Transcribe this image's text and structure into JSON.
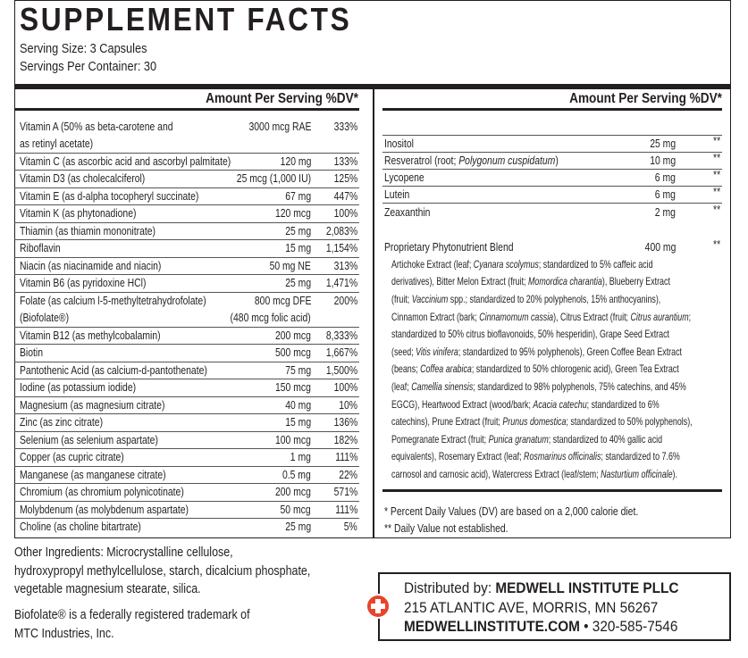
{
  "header": {
    "title": "SUPPLEMENT FACTS",
    "serving_size": "Serving Size: 3 Capsules",
    "servings_per_container": "Servings Per Container: 30"
  },
  "left_table": {
    "heading": "Amount Per Serving %DV*",
    "rows": [
      {
        "name": [
          "Vitamin A (50% as beta-carotene and",
          "as retinyl acetate)"
        ],
        "amount": [
          "3000 mcg RAE"
        ],
        "dv": "333%"
      },
      {
        "name": [
          "Vitamin C (as ascorbic acid and ascorbyl palmitate)"
        ],
        "amount": [
          "120 mg"
        ],
        "dv": "133%"
      },
      {
        "name": [
          "Vitamin D3 (as cholecalciferol)"
        ],
        "amount": [
          "25 mcg (1,000 IU)"
        ],
        "dv": "125%"
      },
      {
        "name": [
          "Vitamin E (as d-alpha tocopheryl succinate)"
        ],
        "amount": [
          "67 mg"
        ],
        "dv": "447%"
      },
      {
        "name": [
          "Vitamin K (as phytonadione)"
        ],
        "amount": [
          "120 mcg"
        ],
        "dv": "100%"
      },
      {
        "name": [
          "Thiamin (as thiamin mononitrate)"
        ],
        "amount": [
          "25 mg"
        ],
        "dv": "2,083%"
      },
      {
        "name": [
          "Riboflavin"
        ],
        "amount": [
          "15 mg"
        ],
        "dv": "1,154%"
      },
      {
        "name": [
          "Niacin (as niacinamide and niacin)"
        ],
        "amount": [
          "50 mg NE"
        ],
        "dv": "313%"
      },
      {
        "name": [
          "Vitamin B6 (as pyridoxine HCl)"
        ],
        "amount": [
          "25 mg"
        ],
        "dv": "1,471%"
      },
      {
        "name": [
          "Folate (as calcium l-5-methyltetrahydrofolate)",
          "(Biofolate®)"
        ],
        "amount": [
          "800 mcg DFE",
          "(480 mcg folic acid)"
        ],
        "dv": "200%"
      },
      {
        "name": [
          "Vitamin B12 (as methylcobalamin)"
        ],
        "amount": [
          "200 mcg"
        ],
        "dv": "8,333%"
      },
      {
        "name": [
          "Biotin"
        ],
        "amount": [
          "500 mcg"
        ],
        "dv": "1,667%"
      },
      {
        "name": [
          "Pantothenic Acid (as calcium-d-pantothenate)"
        ],
        "amount": [
          "75 mg"
        ],
        "dv": "1,500%"
      },
      {
        "name": [
          "Iodine (as potassium iodide)"
        ],
        "amount": [
          "150 mcg"
        ],
        "dv": "100%"
      },
      {
        "name": [
          "Magnesium (as magnesium citrate)"
        ],
        "amount": [
          "40 mg"
        ],
        "dv": "10%"
      },
      {
        "name": [
          "Zinc (as zinc citrate)"
        ],
        "amount": [
          "15 mg"
        ],
        "dv": "136%"
      },
      {
        "name": [
          "Selenium (as selenium aspartate)"
        ],
        "amount": [
          "100 mcg"
        ],
        "dv": "182%"
      },
      {
        "name": [
          "Copper (as cupric citrate)"
        ],
        "amount": [
          "1 mg"
        ],
        "dv": "111%"
      },
      {
        "name": [
          "Manganese (as manganese citrate)"
        ],
        "amount": [
          "0.5 mg"
        ],
        "dv": "22%"
      },
      {
        "name": [
          "Chromium (as chromium polynicotinate)"
        ],
        "amount": [
          "200 mcg"
        ],
        "dv": "571%"
      },
      {
        "name": [
          "Molybdenum (as molybdenum aspartate)"
        ],
        "amount": [
          "50 mcg"
        ],
        "dv": "111%"
      },
      {
        "name": [
          "Choline (as choline bitartrate)"
        ],
        "amount": [
          "25 mg"
        ],
        "dv": "5%"
      }
    ]
  },
  "right_table": {
    "heading": "Amount Per Serving %DV*",
    "rows": [
      {
        "name": "Inositol",
        "amount": "25 mg",
        "dv": "**"
      },
      {
        "name": [
          "Resveratrol (root; ",
          {
            "text": "Polygonum cuspidatum",
            "italic": true
          },
          ")"
        ],
        "amount": "10 mg",
        "dv": "**"
      },
      {
        "name": "Lycopene",
        "amount": "6 mg",
        "dv": "**"
      },
      {
        "name": "Lutein",
        "amount": "6 mg",
        "dv": "**"
      },
      {
        "name": "Zeaxanthin",
        "amount": "2 mg",
        "dv": "**"
      }
    ],
    "blend": {
      "name": "Proprietary Phytonutrient Blend",
      "amount": "400 mg",
      "dv": "**",
      "description": [
        [
          "Artichoke Extract (leaf; ",
          {
            "text": "Cyanara scolymus",
            "italic": true
          },
          "; standardized to 5% caffeic acid"
        ],
        [
          "derivatives), Bitter Melon Extract (fruit; ",
          {
            "text": "Momordica charantia",
            "italic": true
          },
          "), Blueberry Extract"
        ],
        [
          "(fruit; ",
          {
            "text": "Vaccinium",
            "italic": true
          },
          " spp.; standardized to 20% polyphenols, 15% anthocyanins),"
        ],
        [
          "Cinnamon Extract (bark; ",
          {
            "text": "Cinnamomum cassia",
            "italic": true
          },
          "), Citrus Extract (fruit; ",
          {
            "text": "Citrus aurantium",
            "italic": true
          },
          ";"
        ],
        [
          "standardized to 50% citrus bioflavonoids, 50% hesperidin), Grape Seed Extract"
        ],
        [
          "(seed; ",
          {
            "text": "Vitis vinifera",
            "italic": true
          },
          "; standardized to 95% polyphenols), Green Coffee Bean Extract"
        ],
        [
          "(beans; ",
          {
            "text": "Coffea arabica",
            "italic": true
          },
          "; standardized to 50% chlorogenic acid), Green Tea Extract"
        ],
        [
          "(leaf; ",
          {
            "text": "Camellia sinensis",
            "italic": true
          },
          "; standardized to 98% polyphenols, 75% catechins, and 45%"
        ],
        [
          "EGCG), Heartwood Extract (wood/bark; ",
          {
            "text": "Acacia catechu",
            "italic": true
          },
          "; standardized to 6%"
        ],
        [
          "catechins), Prune Extract (fruit; ",
          {
            "text": "Prunus domestica",
            "italic": true
          },
          "; standardized to 50% polyphenols),"
        ],
        [
          "Pomegranate Extract (fruit; ",
          {
            "text": "Punica granatum",
            "italic": true
          },
          "; standardized to 40% gallic acid"
        ],
        [
          "equivalents), Rosemary Extract (leaf; ",
          {
            "text": "Rosmarinus officinalis",
            "italic": true
          },
          "; standardized to 7.6%"
        ],
        [
          "carnosol and carnosic acid), Watercress Extract (leaf/stem; ",
          {
            "text": "Nasturtium officinale",
            "italic": true
          },
          ")."
        ]
      ]
    },
    "footnotes": [
      "* Percent Daily Values (DV) are based on a 2,000 calorie diet.",
      "** Daily Value not established."
    ]
  },
  "other_ingredients": [
    "Other Ingredients: Microcrystalline cellulose,",
    "hydroxypropyl methylcellulose, starch, dicalcium phosphate,",
    "vegetable magnesium stearate, silica."
  ],
  "trademark": [
    "Biofolate® is a federally registered trademark of",
    "MTC Industries, Inc."
  ],
  "distributor": [
    [
      "Distributed by: ",
      {
        "text": "MEDWELL INSTITUTE PLLC",
        "bold": true
      }
    ],
    [
      "215 ATLANTIC AVE, MORRIS, MN 56267"
    ],
    [
      {
        "text": "MEDWELLINSTITUTE.COM",
        "bold": true
      },
      " • 320-585-7546"
    ]
  ]
}
